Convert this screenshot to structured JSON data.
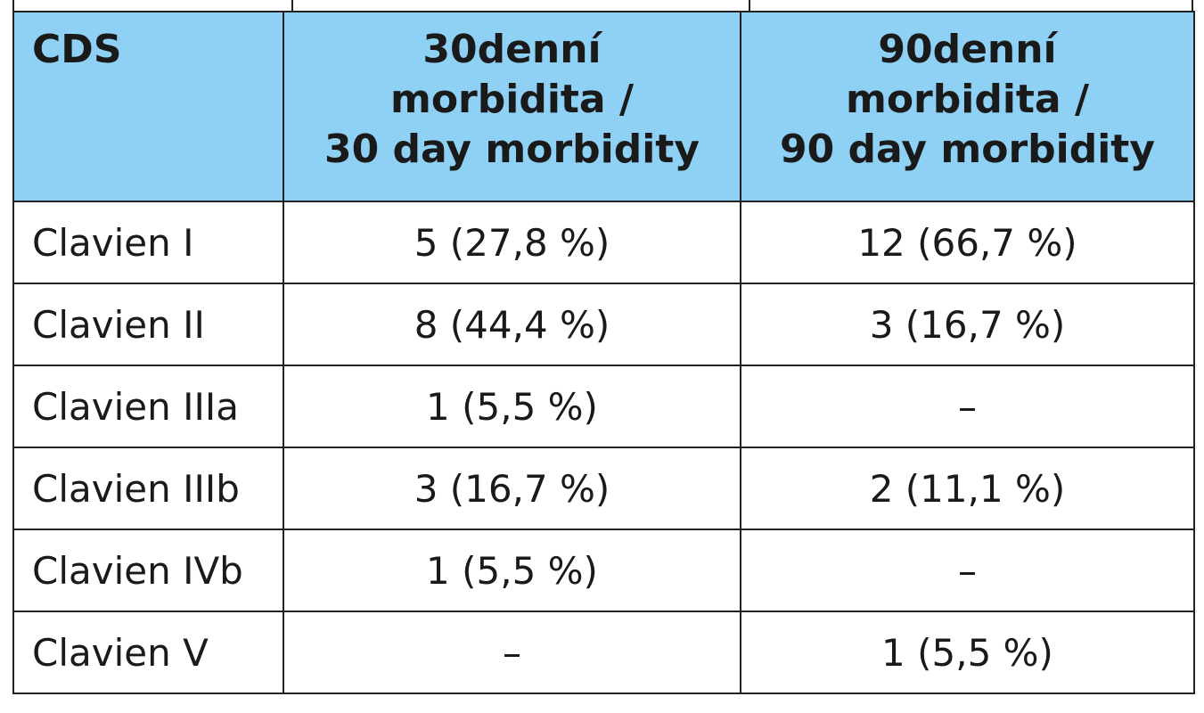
{
  "table": {
    "headers": [
      {
        "lines": [
          "CDS"
        ]
      },
      {
        "lines": [
          "30denní",
          "morbidita /",
          "30 day morbidity"
        ]
      },
      {
        "lines": [
          "90denní",
          "morbidita /",
          "90 day morbidity"
        ]
      }
    ],
    "rows": [
      {
        "grade": "Clavien I",
        "day30": "5 (27,8 %)",
        "day90": "12 (66,7 %)"
      },
      {
        "grade": "Clavien II",
        "day30": "8 (44,4 %)",
        "day90": "3 (16,7 %)"
      },
      {
        "grade": "Clavien IIIa",
        "day30": "1 (5,5 %)",
        "day90": "–"
      },
      {
        "grade": "Clavien IIIb",
        "day30": "3 (16,7 %)",
        "day90": "2 (11,1 %)"
      },
      {
        "grade": "Clavien IVb",
        "day30": "1 (5,5 %)",
        "day90": "–"
      },
      {
        "grade": "Clavien V",
        "day30": "–",
        "day90": "1 (5,5 %)"
      }
    ]
  },
  "colors": {
    "header_background": "#8ed1f4",
    "border": "#222222",
    "text": "#1a1a1a"
  }
}
